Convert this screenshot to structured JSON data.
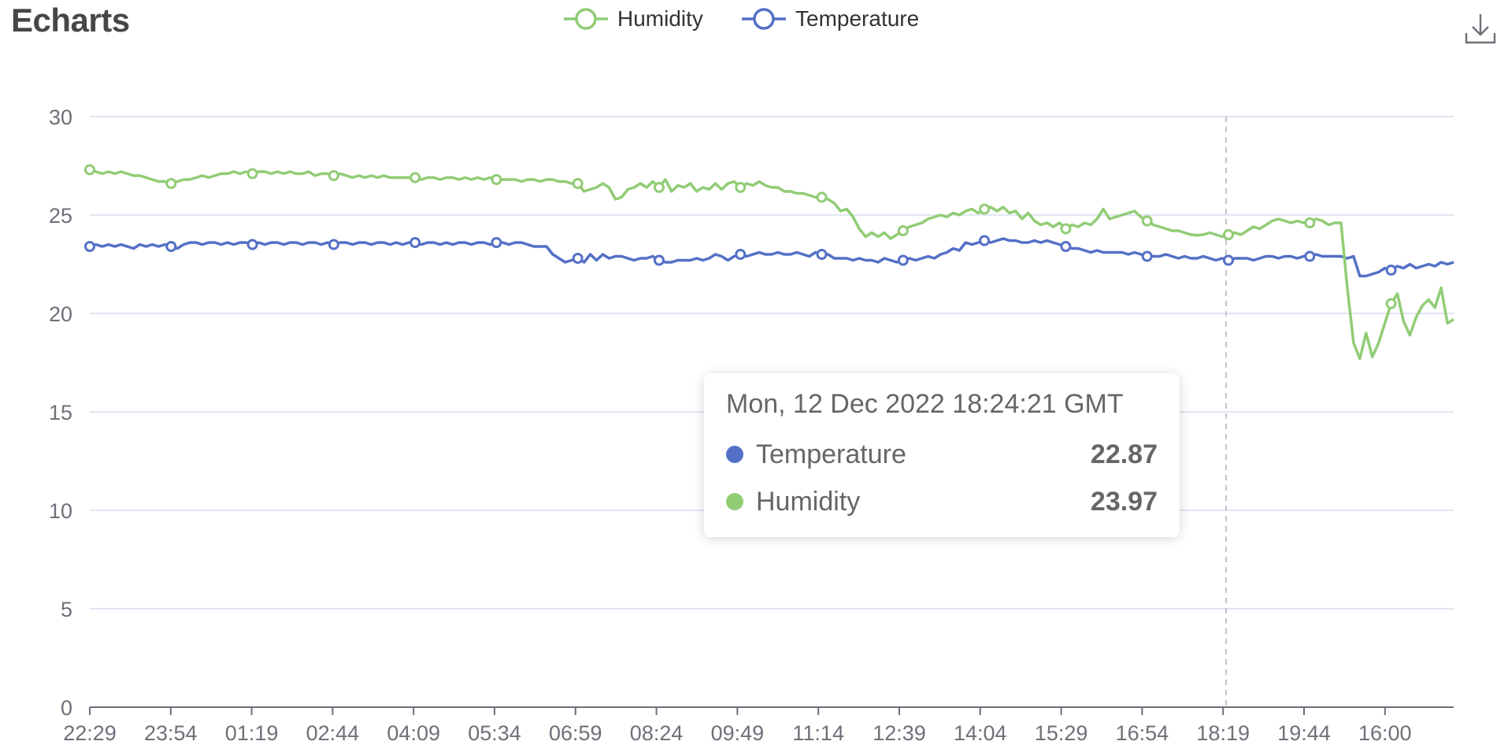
{
  "header": {
    "title": "Echarts"
  },
  "toolbox": {
    "download_icon": "download-icon"
  },
  "colors": {
    "temperature": "#5470c6",
    "humidity": "#91cc75",
    "grid": "#e0e6f1",
    "axis": "#6e7079"
  },
  "tooltip": {
    "title": "Mon, 12 Dec 2022 18:24:21 GMT",
    "rows": [
      {
        "name": "Temperature",
        "value": "22.87",
        "color": "#5470c6"
      },
      {
        "name": "Humidity",
        "value": "23.97",
        "color": "#91cc75"
      }
    ]
  },
  "chart_data": {
    "type": "line",
    "title": "Echarts",
    "legend": {
      "items": [
        "Humidity",
        "Temperature"
      ],
      "position": "top-center"
    },
    "x_tick_labels": [
      "22:29",
      "23:54",
      "01:19",
      "02:44",
      "04:09",
      "05:34",
      "06:59",
      "08:24",
      "09:49",
      "11:14",
      "12:39",
      "14:04",
      "15:29",
      "16:54",
      "18:19",
      "19:44",
      "16:00"
    ],
    "ylim": [
      0,
      30
    ],
    "y_ticks": [
      0,
      5,
      10,
      15,
      20,
      25,
      30
    ],
    "grid": true,
    "series": [
      {
        "name": "Temperature",
        "color": "#5470c6",
        "values": [
          23.4,
          23.5,
          23.4,
          23.5,
          23.4,
          23.5,
          23.4,
          23.3,
          23.5,
          23.4,
          23.5,
          23.4,
          23.5,
          23.4,
          23.3,
          23.5,
          23.6,
          23.6,
          23.5,
          23.6,
          23.6,
          23.5,
          23.6,
          23.5,
          23.6,
          23.6,
          23.5,
          23.6,
          23.5,
          23.6,
          23.6,
          23.5,
          23.6,
          23.6,
          23.5,
          23.6,
          23.6,
          23.5,
          23.6,
          23.5,
          23.6,
          23.6,
          23.5,
          23.6,
          23.6,
          23.5,
          23.6,
          23.6,
          23.5,
          23.6,
          23.5,
          23.6,
          23.6,
          23.5,
          23.6,
          23.6,
          23.5,
          23.6,
          23.5,
          23.6,
          23.6,
          23.5,
          23.6,
          23.6,
          23.5,
          23.6,
          23.6,
          23.5,
          23.6,
          23.6,
          23.5,
          23.4,
          23.4,
          23.4,
          23.0,
          22.8,
          22.6,
          22.7,
          22.8,
          22.6,
          23.0,
          22.7,
          23.0,
          22.8,
          22.9,
          22.9,
          22.8,
          22.7,
          22.8,
          22.8,
          22.9,
          22.7,
          22.6,
          22.6,
          22.7,
          22.7,
          22.7,
          22.8,
          22.7,
          22.8,
          23.0,
          22.9,
          22.7,
          22.9,
          23.0,
          22.9,
          23.0,
          23.1,
          23.0,
          23.0,
          23.1,
          23.0,
          23.0,
          23.1,
          23.0,
          22.9,
          23.1,
          23.0,
          23.0,
          22.8,
          22.8,
          22.8,
          22.7,
          22.8,
          22.7,
          22.7,
          22.6,
          22.8,
          22.7,
          22.6,
          22.7,
          22.8,
          22.7,
          22.8,
          22.9,
          22.8,
          23.0,
          23.1,
          23.3,
          23.2,
          23.6,
          23.5,
          23.6,
          23.7,
          23.6,
          23.7,
          23.8,
          23.7,
          23.7,
          23.6,
          23.6,
          23.7,
          23.6,
          23.7,
          23.6,
          23.5,
          23.4,
          23.3,
          23.3,
          23.2,
          23.1,
          23.2,
          23.1,
          23.1,
          23.1,
          23.1,
          23.0,
          23.1,
          23.0,
          22.9,
          22.9,
          22.9,
          23.0,
          22.9,
          22.8,
          22.9,
          22.8,
          22.8,
          22.9,
          22.8,
          22.7,
          22.8,
          22.7,
          22.8,
          22.8,
          22.8,
          22.7,
          22.8,
          22.9,
          22.9,
          22.8,
          22.9,
          22.9,
          22.8,
          22.9,
          22.9,
          23.0,
          22.9,
          22.9,
          22.9,
          22.9,
          22.8,
          22.9,
          21.9,
          21.9,
          22.0,
          22.1,
          22.3,
          22.2,
          22.4,
          22.3,
          22.5,
          22.3,
          22.4,
          22.5,
          22.4,
          22.6,
          22.5,
          22.6
        ]
      },
      {
        "name": "Humidity",
        "color": "#91cc75",
        "values": [
          27.3,
          27.2,
          27.1,
          27.2,
          27.1,
          27.2,
          27.1,
          27.0,
          27.0,
          26.9,
          26.8,
          26.7,
          26.7,
          26.6,
          26.7,
          26.8,
          26.8,
          26.9,
          27.0,
          26.9,
          27.0,
          27.1,
          27.1,
          27.2,
          27.1,
          27.2,
          27.1,
          27.2,
          27.2,
          27.1,
          27.2,
          27.1,
          27.2,
          27.1,
          27.1,
          27.2,
          27.0,
          27.1,
          27.1,
          27.0,
          27.1,
          27.0,
          26.9,
          27.0,
          26.9,
          27.0,
          26.9,
          27.0,
          26.9,
          26.9,
          26.9,
          26.9,
          26.9,
          26.8,
          26.9,
          26.9,
          26.8,
          26.9,
          26.9,
          26.8,
          26.9,
          26.8,
          26.9,
          26.8,
          26.9,
          26.8,
          26.8,
          26.8,
          26.8,
          26.7,
          26.8,
          26.8,
          26.7,
          26.8,
          26.8,
          26.7,
          26.7,
          26.6,
          26.6,
          26.2,
          26.3,
          26.4,
          26.6,
          26.4,
          25.8,
          25.9,
          26.3,
          26.4,
          26.6,
          26.4,
          26.7,
          26.4,
          26.8,
          26.2,
          26.5,
          26.4,
          26.6,
          26.2,
          26.4,
          26.3,
          26.6,
          26.3,
          26.6,
          26.7,
          26.4,
          26.6,
          26.5,
          26.7,
          26.5,
          26.4,
          26.4,
          26.2,
          26.2,
          26.1,
          26.1,
          26.0,
          25.9,
          25.9,
          25.8,
          25.6,
          25.2,
          25.3,
          24.9,
          24.3,
          23.9,
          24.1,
          23.9,
          24.1,
          23.8,
          24.0,
          24.2,
          24.4,
          24.5,
          24.6,
          24.8,
          24.9,
          25.0,
          24.9,
          25.1,
          25.0,
          25.2,
          25.3,
          25.1,
          25.3,
          25.4,
          25.2,
          25.4,
          25.1,
          25.2,
          24.8,
          25.1,
          24.7,
          24.5,
          24.6,
          24.4,
          24.6,
          24.3,
          24.5,
          24.4,
          24.6,
          24.5,
          24.8,
          25.3,
          24.8,
          24.9,
          25.0,
          25.1,
          25.2,
          24.9,
          24.7,
          24.5,
          24.4,
          24.3,
          24.2,
          24.2,
          24.1,
          24.0,
          23.97,
          24.0,
          24.1,
          24.0,
          23.9,
          24.0,
          24.1,
          24.0,
          24.2,
          24.4,
          24.3,
          24.5,
          24.7,
          24.8,
          24.7,
          24.6,
          24.7,
          24.6,
          24.6,
          24.8,
          24.7,
          24.5,
          24.6,
          24.6,
          21.3,
          18.5,
          17.7,
          19.0,
          17.8,
          18.5,
          19.5,
          20.5,
          21.0,
          19.6,
          18.9,
          19.8,
          20.4,
          20.7,
          20.3,
          21.3,
          19.5,
          19.7
        ]
      }
    ]
  }
}
